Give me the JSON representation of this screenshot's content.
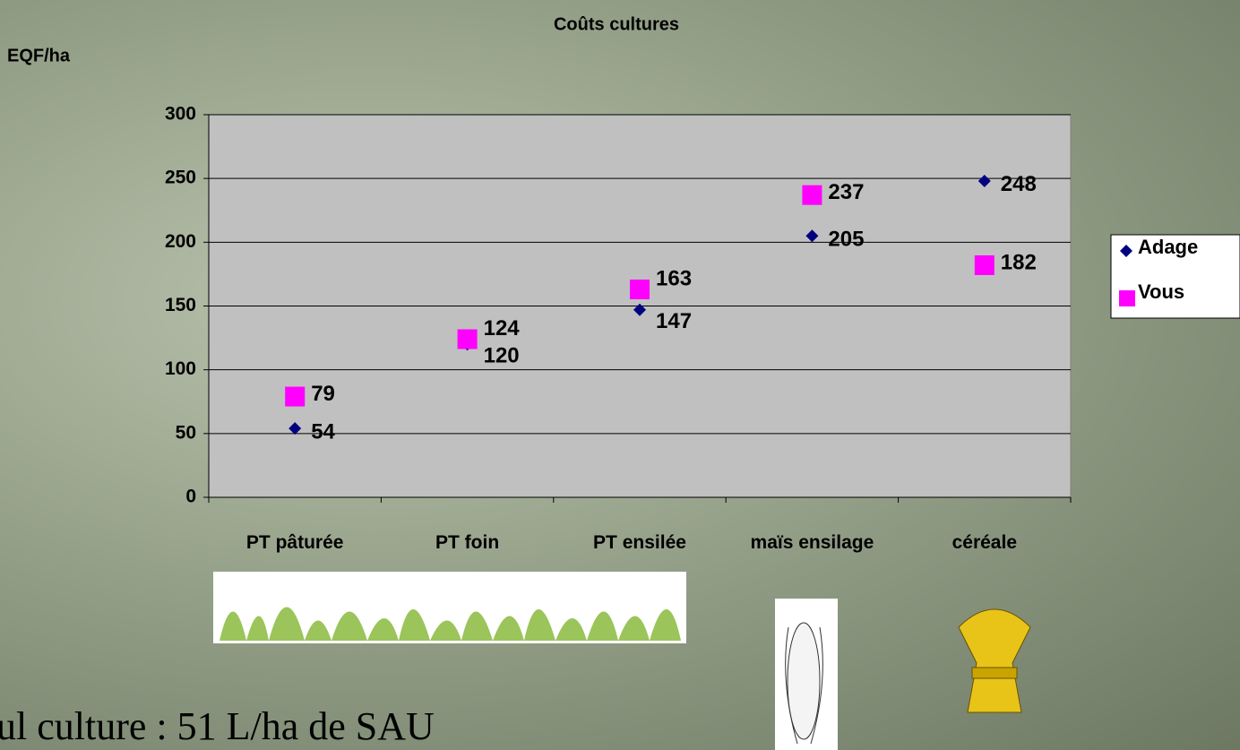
{
  "chart_data": {
    "type": "scatter",
    "title": "Coûts cultures",
    "y_label": "EQF/ha",
    "categories": [
      "PT pâturée",
      "PT foin",
      "PT ensilée",
      "maïs ensilage",
      "céréale"
    ],
    "series": [
      {
        "name": "Adage",
        "color": "#000080",
        "marker": "diamond",
        "values": [
          54,
          120,
          147,
          205,
          248
        ]
      },
      {
        "name": "Vous",
        "color": "#ff00ff",
        "marker": "square",
        "values": [
          79,
          124,
          163,
          237,
          182
        ]
      }
    ],
    "ylim": [
      0,
      300
    ],
    "yticks": [
      0,
      50,
      100,
      150,
      200,
      250,
      300
    ],
    "grid": true,
    "legend": "right"
  },
  "footer_text": "ul culture : 51 L/ha de SAU"
}
